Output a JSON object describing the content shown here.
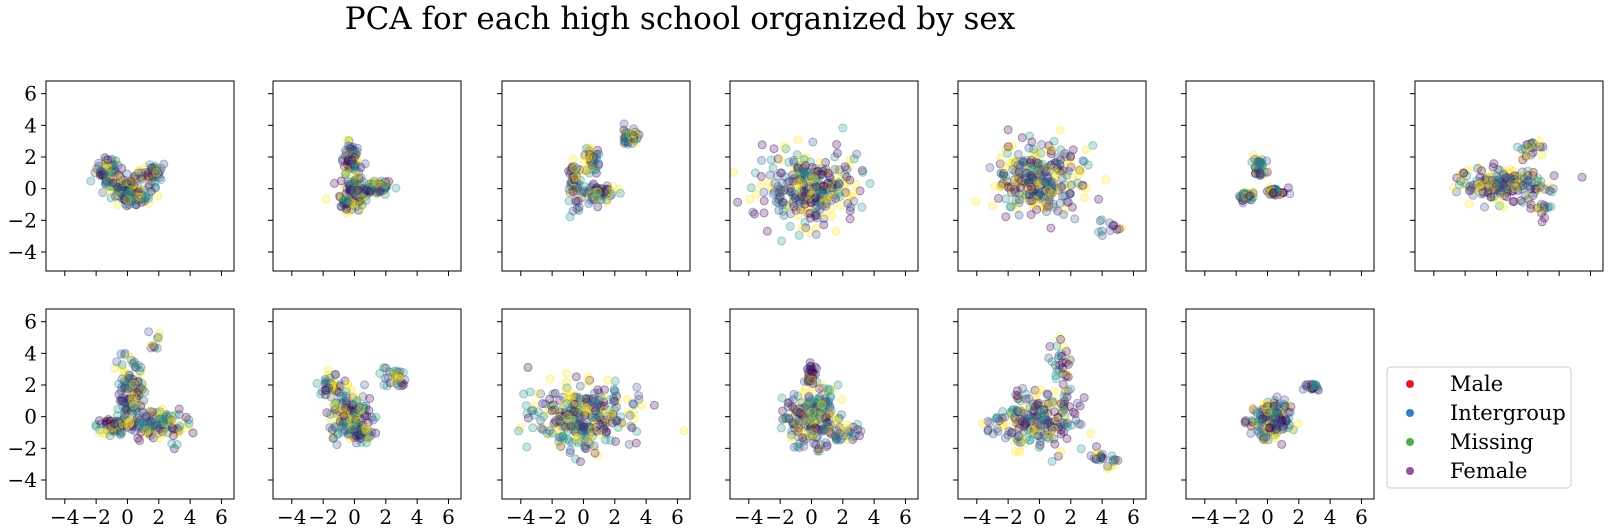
{
  "chart_data": {
    "type": "scatter",
    "title": "PCA for each high school organized by sex",
    "layout": {
      "rows": 2,
      "cols": 7,
      "panels": 13,
      "sharex": true,
      "sharey": true
    },
    "xlim": [
      -5.2,
      6.8
    ],
    "ylim": [
      -5.2,
      6.8
    ],
    "xticks": [
      -4,
      -2,
      0,
      2,
      4,
      6
    ],
    "yticks": [
      -4,
      -2,
      0,
      2,
      4,
      6
    ],
    "xtick_labels": [
      "−4",
      "−2",
      "0",
      "2",
      "4",
      "6"
    ],
    "ytick_labels": [
      "−4",
      "−2",
      "0",
      "2",
      "4",
      "6"
    ],
    "grid": false,
    "marker_alpha": 0.25,
    "point_colors": [
      "#440154",
      "#3b528b",
      "#21918c",
      "#fde725"
    ],
    "legend": {
      "placement": "lower-right",
      "entries": [
        {
          "label": "Male",
          "color": "#e41a1c"
        },
        {
          "label": "Intergroup",
          "color": "#377eb8"
        },
        {
          "label": "Missing",
          "color": "#4daf4a"
        },
        {
          "label": "Female",
          "color": "#984ea3"
        }
      ]
    },
    "panels": [
      {
        "clusters": [
          [
            -1.3,
            1.2,
            0.5,
            0.5,
            60
          ],
          [
            0,
            0,
            0.9,
            0.55,
            130
          ],
          [
            1.5,
            1.0,
            0.5,
            0.45,
            50
          ],
          [
            0.3,
            -0.7,
            0.6,
            0.3,
            40
          ]
        ]
      },
      {
        "clusters": [
          [
            -0.3,
            1.8,
            0.4,
            0.8,
            70
          ],
          [
            0,
            -0.2,
            0.6,
            0.7,
            120
          ],
          [
            1.5,
            0.1,
            0.55,
            0.3,
            55
          ],
          [
            -0.5,
            -0.9,
            0.3,
            0.3,
            25
          ]
        ]
      },
      {
        "clusters": [
          [
            -0.6,
            0.5,
            0.3,
            0.9,
            60
          ],
          [
            0.5,
            1.8,
            0.35,
            0.6,
            45
          ],
          [
            1.0,
            -0.3,
            0.8,
            0.35,
            70
          ],
          [
            3.0,
            3.3,
            0.35,
            0.3,
            45
          ]
        ]
      },
      {
        "clusters": [
          [
            0,
            0,
            2.0,
            1.5,
            320
          ]
        ]
      },
      {
        "clusters": [
          [
            0,
            0.5,
            1.8,
            1.5,
            300
          ],
          [
            4.5,
            -2.5,
            0.6,
            0.5,
            12
          ]
        ]
      },
      {
        "clusters": [
          [
            -0.5,
            1.3,
            0.25,
            0.5,
            40
          ],
          [
            -1.3,
            -0.5,
            0.35,
            0.25,
            40
          ],
          [
            0.5,
            -0.2,
            0.45,
            0.2,
            40
          ]
        ]
      },
      {
        "clusters": [
          [
            0.3,
            0.3,
            1.8,
            0.7,
            200
          ],
          [
            2.3,
            2.5,
            0.5,
            0.4,
            25
          ],
          [
            3.0,
            -1.2,
            0.6,
            0.4,
            20
          ]
        ]
      },
      {
        "clusters": [
          [
            -0.8,
            -0.6,
            0.7,
            0.4,
            70
          ],
          [
            0.2,
            1.5,
            0.6,
            1.4,
            120
          ],
          [
            2.0,
            -0.4,
            1.2,
            0.7,
            120
          ],
          [
            1.7,
            4.5,
            0.25,
            0.7,
            10
          ]
        ]
      },
      {
        "clusters": [
          [
            -1.5,
            2.0,
            0.5,
            0.5,
            40
          ],
          [
            -0.2,
            0,
            0.9,
            1.0,
            160
          ],
          [
            2.5,
            2.5,
            0.6,
            0.5,
            35
          ],
          [
            0.4,
            -1.1,
            0.6,
            0.4,
            35
          ]
        ]
      },
      {
        "clusters": [
          [
            0,
            0,
            2.0,
            1.3,
            320
          ]
        ]
      },
      {
        "clusters": [
          [
            0,
            0,
            1.2,
            1.2,
            220
          ],
          [
            0,
            2.6,
            0.25,
            0.7,
            30
          ],
          [
            2.0,
            -1.0,
            0.8,
            0.5,
            35
          ]
        ]
      },
      {
        "clusters": [
          [
            0,
            -0.2,
            1.5,
            1.4,
            200
          ],
          [
            1.4,
            3.2,
            0.5,
            1.2,
            35
          ],
          [
            4.2,
            -2.8,
            0.6,
            0.4,
            25
          ],
          [
            -3.0,
            -0.5,
            0.6,
            0.5,
            15
          ]
        ]
      },
      {
        "clusters": [
          [
            0.2,
            -0.2,
            0.9,
            0.8,
            160
          ],
          [
            2.9,
            1.9,
            0.25,
            0.15,
            25
          ]
        ]
      }
    ]
  }
}
